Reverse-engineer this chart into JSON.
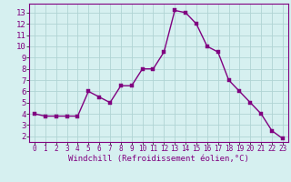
{
  "x": [
    0,
    1,
    2,
    3,
    4,
    5,
    6,
    7,
    8,
    9,
    10,
    11,
    12,
    13,
    14,
    15,
    16,
    17,
    18,
    19,
    20,
    21,
    22,
    23
  ],
  "y": [
    4,
    3.8,
    3.8,
    3.8,
    3.8,
    6,
    5.5,
    5,
    6.5,
    6.5,
    8,
    8,
    9.5,
    13.2,
    13,
    12,
    10,
    9.5,
    7,
    6,
    5,
    4,
    2.5,
    1.8
  ],
  "line_color": "#800080",
  "marker_color": "#800080",
  "bg_color": "#D6F0F0",
  "grid_color": "#B0D4D4",
  "xlabel": "Windchill (Refroidissement éolien,°C)",
  "ylabel_ticks": [
    2,
    3,
    4,
    5,
    6,
    7,
    8,
    9,
    10,
    11,
    12,
    13
  ],
  "xtick_labels": [
    "0",
    "1",
    "2",
    "3",
    "4",
    "5",
    "6",
    "7",
    "8",
    "9",
    "10",
    "11",
    "12",
    "13",
    "14",
    "15",
    "16",
    "17",
    "18",
    "19",
    "20",
    "21",
    "22",
    "23"
  ],
  "xticks": [
    0,
    1,
    2,
    3,
    4,
    5,
    6,
    7,
    8,
    9,
    10,
    11,
    12,
    13,
    14,
    15,
    16,
    17,
    18,
    19,
    20,
    21,
    22,
    23
  ],
  "ylim": [
    1.5,
    13.8
  ],
  "xlim": [
    -0.5,
    23.5
  ],
  "axis_label_color": "#800080",
  "tick_label_color": "#800080",
  "xlabel_fontsize": 6.5,
  "ytick_fontsize": 6.5,
  "xtick_fontsize": 5.5,
  "marker_size": 2.5,
  "line_width": 1.0,
  "spine_color": "#800080"
}
